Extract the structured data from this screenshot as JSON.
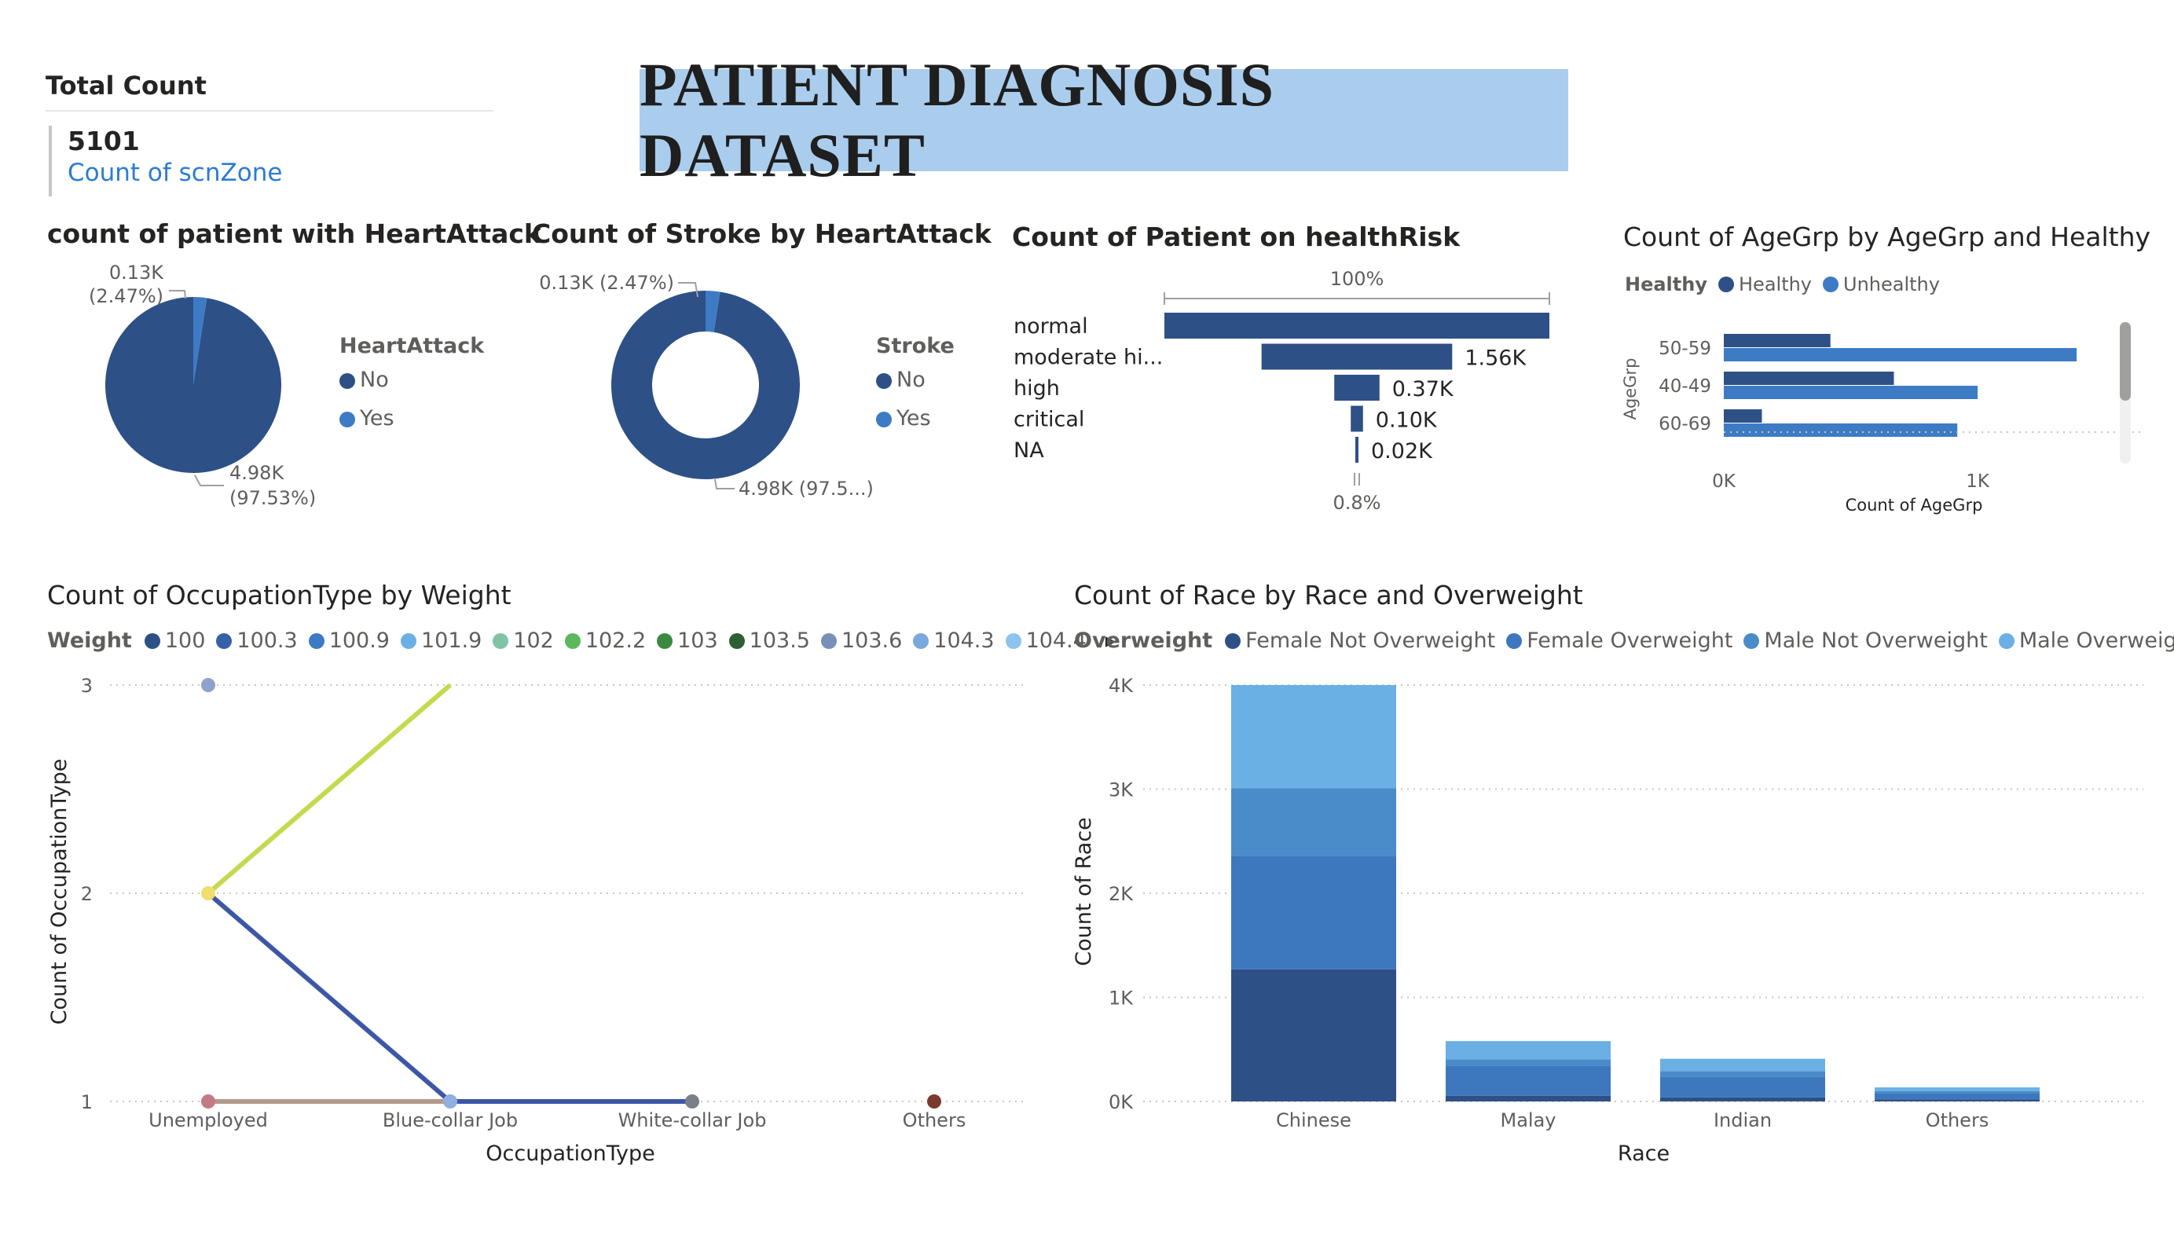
{
  "banner": {
    "title": "PATIENT DIAGNOSIS DATASET"
  },
  "total_card": {
    "header": "Total Count",
    "value": "5101",
    "subtitle": "Count of scnZone"
  },
  "colors": {
    "dark_blue": "#2d5087",
    "mid_blue": "#3d7bc4",
    "blue2": "#4a8bc9",
    "light_blue": "#6fb3e3",
    "gray": "#c8c6c4",
    "banner_bg": "#aacdee"
  },
  "chart_data": [
    {
      "id": "heartattack-pie",
      "type": "pie",
      "title": "count of patient with HeartAttack",
      "legend_title": "HeartAttack",
      "legend_position": "right",
      "slices": [
        {
          "name": "No",
          "value": 4.98,
          "unit": "K",
          "percent": 97.53,
          "label_line1": "4.98K",
          "label_line2": "(97.53%)",
          "color": "#2d5087"
        },
        {
          "name": "Yes",
          "value": 0.13,
          "unit": "K",
          "percent": 2.47,
          "label_line1": "0.13K",
          "label_line2": "(2.47%)",
          "color": "#3d7bc4"
        }
      ]
    },
    {
      "id": "stroke-donut",
      "type": "pie",
      "subtype": "donut",
      "title": "Count of Stroke by HeartAttack",
      "legend_title": "Stroke",
      "legend_position": "right",
      "slices": [
        {
          "name": "No",
          "value": 4.98,
          "unit": "K",
          "percent": 97.5,
          "label": "4.98K (97.5...)",
          "color": "#2d5087"
        },
        {
          "name": "Yes",
          "value": 0.13,
          "unit": "K",
          "percent": 2.47,
          "label": "0.13K (2.47%)",
          "color": "#3d7bc4"
        }
      ]
    },
    {
      "id": "healthrisk-funnel",
      "type": "bar",
      "subtype": "funnel",
      "title": "Count of Patient on healthRisk",
      "top_label": "100%",
      "bottom_label": "0.8%",
      "categories": [
        "normal",
        "moderate hi...",
        "high",
        "critical",
        "NA"
      ],
      "values": [
        3.15,
        1.56,
        0.37,
        0.1,
        0.02
      ],
      "value_labels": [
        "",
        "1.56K",
        "0.37K",
        "0.10K",
        "0.02K"
      ],
      "unit": "K"
    },
    {
      "id": "agegrp-bars",
      "type": "bar",
      "orientation": "horizontal",
      "title": "Count of AgeGrp by AgeGrp and Healthy",
      "legend_title": "Healthy",
      "legend_position": "top-left",
      "categories": [
        "50-59",
        "40-49",
        "60-69"
      ],
      "series": [
        {
          "name": "Healthy",
          "values": [
            420,
            670,
            150
          ],
          "color": "#2d5087"
        },
        {
          "name": "Unhealthy",
          "values": [
            1390,
            1000,
            920
          ],
          "color": "#3d7bc4"
        }
      ],
      "xlabel": "Count of AgeGrp",
      "ylabel": "AgeGrp",
      "xlim": [
        0,
        1600
      ],
      "xticks": [
        {
          "value": 0,
          "label": "0K"
        },
        {
          "value": 1000,
          "label": "1K"
        }
      ]
    },
    {
      "id": "occupation-lines",
      "type": "line",
      "title": "Count of OccupationType by Weight",
      "legend_title": "Weight",
      "legend_position": "top-left",
      "legend_entries": [
        {
          "name": "100",
          "color": "#2d5087"
        },
        {
          "name": "100.3",
          "color": "#3660a8"
        },
        {
          "name": "100.9",
          "color": "#3d7bc4"
        },
        {
          "name": "101.9",
          "color": "#6ab0e4"
        },
        {
          "name": "102",
          "color": "#7fc4a6"
        },
        {
          "name": "102.2",
          "color": "#5cb85c"
        },
        {
          "name": "103",
          "color": "#3a8a3f"
        },
        {
          "name": "103.5",
          "color": "#2e5e32"
        },
        {
          "name": "103.6",
          "color": "#7a8fb8"
        },
        {
          "name": "104.3",
          "color": "#7aa9df"
        },
        {
          "name": "104.4",
          "color": "#8cc4ee"
        }
      ],
      "categories": [
        "Unemployed",
        "Blue-collar Job",
        "White-collar Job",
        "Others"
      ],
      "ylim": [
        1,
        3
      ],
      "yticks": [
        1,
        2,
        3
      ],
      "xlabel": "OccupationType",
      "ylabel": "Count of OccupationType",
      "lines": [
        {
          "color": "#c5d94e",
          "points": [
            [
              0,
              2
            ],
            [
              1,
              3
            ]
          ]
        },
        {
          "color": "#3e56a6",
          "points": [
            [
              0,
              2
            ],
            [
              1,
              1
            ],
            [
              2,
              1
            ]
          ]
        },
        {
          "color": "#b49a8c",
          "points": [
            [
              0,
              1
            ],
            [
              1,
              1
            ]
          ]
        }
      ],
      "markers": [
        {
          "x": 0,
          "y": 3,
          "color": "#8fa1cc"
        },
        {
          "x": 0,
          "y": 2,
          "color": "#f1dd6b"
        },
        {
          "x": 0,
          "y": 1,
          "color": "#c47a82"
        },
        {
          "x": 1,
          "y": 1,
          "color": "#8fb0e0"
        },
        {
          "x": 2,
          "y": 1,
          "color": "#7b7f88"
        },
        {
          "x": 3,
          "y": 1,
          "color": "#7a3b2e"
        }
      ]
    },
    {
      "id": "race-stacked",
      "type": "bar",
      "subtype": "stacked",
      "title": "Count of Race by Race and Overweight",
      "legend_title": "Overweight",
      "legend_position": "top-left",
      "categories": [
        "Chinese",
        "Malay",
        "Indian",
        "Others"
      ],
      "series": [
        {
          "name": "Female Not Overweight",
          "values": [
            1270,
            55,
            40,
            20
          ],
          "color": "#2d5087"
        },
        {
          "name": "Female Overweight",
          "values": [
            1090,
            290,
            200,
            60
          ],
          "color": "#3d78be"
        },
        {
          "name": "Male Not Overweight",
          "values": [
            650,
            60,
            50,
            20
          ],
          "color": "#4a8bc9"
        },
        {
          "name": "Male Overweight",
          "values": [
            990,
            175,
            120,
            35
          ],
          "color": "#6ab0e4"
        }
      ],
      "xlabel": "Race",
      "ylabel": "Count of Race",
      "ylim": [
        0,
        4000
      ],
      "yticks": [
        {
          "value": 0,
          "label": "0K"
        },
        {
          "value": 1000,
          "label": "1K"
        },
        {
          "value": 2000,
          "label": "2K"
        },
        {
          "value": 3000,
          "label": "3K"
        },
        {
          "value": 4000,
          "label": "4K"
        }
      ]
    }
  ]
}
